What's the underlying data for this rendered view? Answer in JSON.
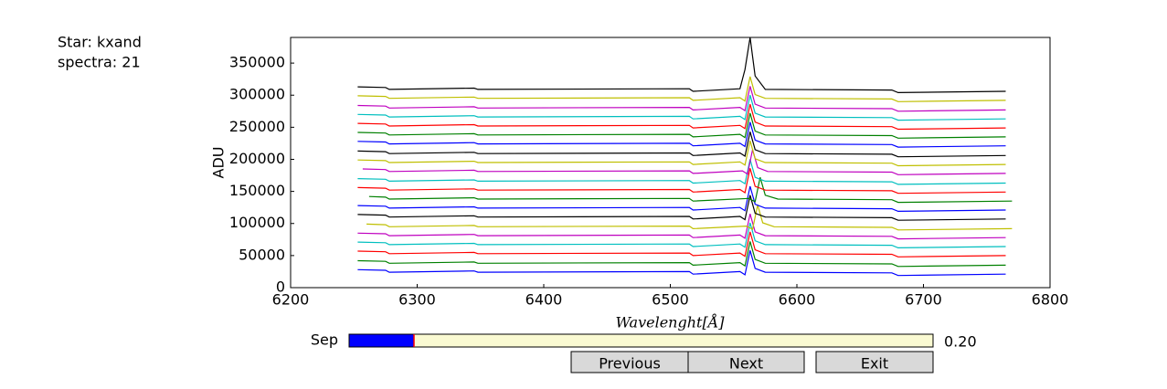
{
  "header": {
    "star": "Star: kxand",
    "spectra": "spectra: 21"
  },
  "chart_data": {
    "type": "line",
    "xlabel": "Wavelenght[Å]",
    "ylabel": "ADU",
    "xlim": [
      6200,
      6800
    ],
    "xticks": [
      6200,
      6300,
      6400,
      6500,
      6600,
      6700,
      6800
    ],
    "ylim": [
      0,
      390000
    ],
    "yticks": [
      0,
      50000,
      100000,
      150000,
      200000,
      250000,
      300000,
      350000
    ],
    "series": [
      {
        "color": "#0000ff",
        "x": [
          6253,
          6275,
          6278,
          6345,
          6348,
          6515,
          6518,
          6555,
          6559,
          6563,
          6567,
          6575,
          6675,
          6680,
          6765
        ],
        "values": [
          28000,
          27000,
          24000,
          26000,
          24000,
          25000,
          21000,
          25000,
          20000,
          58000,
          30000,
          24000,
          23000,
          19000,
          21000
        ]
      },
      {
        "color": "#008000",
        "x": [
          6253,
          6275,
          6278,
          6345,
          6348,
          6515,
          6518,
          6555,
          6559,
          6563,
          6567,
          6575,
          6675,
          6680,
          6765
        ],
        "values": [
          42000,
          41000,
          38000,
          40000,
          38000,
          39000,
          35000,
          39000,
          34000,
          72000,
          44000,
          38000,
          37000,
          33000,
          35000
        ]
      },
      {
        "color": "#ff0000",
        "x": [
          6253,
          6275,
          6278,
          6345,
          6348,
          6515,
          6518,
          6555,
          6559,
          6563,
          6567,
          6575,
          6675,
          6680,
          6765
        ],
        "values": [
          57000,
          56000,
          53000,
          55000,
          53000,
          54000,
          50000,
          54000,
          49000,
          87000,
          59000,
          53000,
          52000,
          48000,
          50000
        ]
      },
      {
        "color": "#00bfbf",
        "x": [
          6253,
          6275,
          6278,
          6345,
          6348,
          6515,
          6518,
          6555,
          6559,
          6563,
          6567,
          6575,
          6675,
          6680,
          6765
        ],
        "values": [
          71000,
          70000,
          67000,
          69000,
          67000,
          68000,
          64000,
          68000,
          63000,
          101000,
          73000,
          67000,
          66000,
          62000,
          64000
        ]
      },
      {
        "color": "#bf00bf",
        "x": [
          6253,
          6275,
          6278,
          6345,
          6348,
          6515,
          6518,
          6555,
          6559,
          6563,
          6567,
          6575,
          6675,
          6680,
          6765
        ],
        "values": [
          85000,
          84000,
          81000,
          83000,
          81000,
          82000,
          78000,
          82000,
          77000,
          115000,
          87000,
          81000,
          80000,
          76000,
          78000
        ]
      },
      {
        "color": "#bfbf00",
        "x": [
          6260,
          6275,
          6278,
          6345,
          6348,
          6515,
          6518,
          6560,
          6565,
          6569,
          6573,
          6582,
          6675,
          6680,
          6770
        ],
        "values": [
          99000,
          98000,
          95000,
          97000,
          95000,
          96000,
          92000,
          96000,
          91000,
          129000,
          101000,
          95000,
          94000,
          90000,
          92000
        ]
      },
      {
        "color": "#000000",
        "x": [
          6253,
          6275,
          6278,
          6345,
          6348,
          6515,
          6518,
          6555,
          6559,
          6563,
          6567,
          6575,
          6675,
          6680,
          6765
        ],
        "values": [
          114000,
          113000,
          110000,
          112000,
          110000,
          111000,
          107000,
          111000,
          106000,
          144000,
          116000,
          110000,
          109000,
          105000,
          107000
        ]
      },
      {
        "color": "#0000ff",
        "x": [
          6253,
          6275,
          6278,
          6345,
          6348,
          6515,
          6518,
          6555,
          6559,
          6563,
          6567,
          6575,
          6675,
          6680,
          6765
        ],
        "values": [
          128000,
          127000,
          124000,
          126000,
          124000,
          125000,
          121000,
          125000,
          120000,
          158000,
          130000,
          124000,
          123000,
          119000,
          121000
        ]
      },
      {
        "color": "#008000",
        "x": [
          6262,
          6275,
          6278,
          6345,
          6348,
          6515,
          6518,
          6562,
          6567,
          6571,
          6575,
          6585,
          6675,
          6680,
          6770
        ],
        "values": [
          142000,
          141000,
          138000,
          140000,
          138000,
          139000,
          135000,
          139000,
          134000,
          172000,
          144000,
          138000,
          137000,
          133000,
          135000
        ]
      },
      {
        "color": "#ff0000",
        "x": [
          6253,
          6275,
          6278,
          6345,
          6348,
          6515,
          6518,
          6555,
          6559,
          6563,
          6567,
          6575,
          6675,
          6680,
          6765
        ],
        "values": [
          156000,
          155000,
          152000,
          154000,
          152000,
          153000,
          149000,
          153000,
          148000,
          186000,
          158000,
          152000,
          151000,
          147000,
          149000
        ]
      },
      {
        "color": "#00bfbf",
        "x": [
          6253,
          6275,
          6278,
          6345,
          6348,
          6515,
          6518,
          6555,
          6559,
          6563,
          6567,
          6575,
          6675,
          6680,
          6765
        ],
        "values": [
          170000,
          169000,
          166000,
          168000,
          166000,
          167000,
          163000,
          167000,
          162000,
          200000,
          172000,
          166000,
          165000,
          161000,
          163000
        ]
      },
      {
        "color": "#bf00bf",
        "x": [
          6257,
          6275,
          6278,
          6345,
          6348,
          6515,
          6518,
          6557,
          6561,
          6565,
          6569,
          6577,
          6675,
          6680,
          6765
        ],
        "values": [
          185000,
          184000,
          181000,
          183000,
          181000,
          182000,
          178000,
          182000,
          177000,
          215000,
          187000,
          181000,
          180000,
          176000,
          178000
        ]
      },
      {
        "color": "#bfbf00",
        "x": [
          6253,
          6275,
          6278,
          6345,
          6348,
          6515,
          6518,
          6555,
          6559,
          6563,
          6567,
          6575,
          6675,
          6680,
          6765
        ],
        "values": [
          199000,
          198000,
          195000,
          197000,
          195000,
          196000,
          192000,
          196000,
          191000,
          229000,
          201000,
          195000,
          194000,
          190000,
          192000
        ]
      },
      {
        "color": "#000000",
        "x": [
          6253,
          6275,
          6278,
          6345,
          6348,
          6515,
          6518,
          6555,
          6559,
          6563,
          6567,
          6575,
          6675,
          6680,
          6765
        ],
        "values": [
          213000,
          212000,
          209000,
          211000,
          209000,
          210000,
          206000,
          210000,
          205000,
          243000,
          215000,
          209000,
          208000,
          204000,
          206000
        ]
      },
      {
        "color": "#0000ff",
        "x": [
          6253,
          6275,
          6278,
          6345,
          6348,
          6515,
          6518,
          6555,
          6559,
          6563,
          6567,
          6575,
          6675,
          6680,
          6765
        ],
        "values": [
          228000,
          227000,
          224000,
          226000,
          224000,
          225000,
          221000,
          225000,
          220000,
          258000,
          230000,
          224000,
          223000,
          219000,
          221000
        ]
      },
      {
        "color": "#008000",
        "x": [
          6253,
          6275,
          6278,
          6345,
          6348,
          6515,
          6518,
          6555,
          6559,
          6563,
          6567,
          6575,
          6675,
          6680,
          6765
        ],
        "values": [
          242000,
          241000,
          238000,
          240000,
          238000,
          239000,
          235000,
          239000,
          234000,
          272000,
          244000,
          238000,
          237000,
          233000,
          235000
        ]
      },
      {
        "color": "#ff0000",
        "x": [
          6253,
          6275,
          6278,
          6345,
          6348,
          6515,
          6518,
          6555,
          6559,
          6563,
          6567,
          6575,
          6675,
          6680,
          6765
        ],
        "values": [
          256000,
          255000,
          252000,
          254000,
          252000,
          253000,
          249000,
          253000,
          248000,
          286000,
          258000,
          252000,
          251000,
          247000,
          249000
        ]
      },
      {
        "color": "#00bfbf",
        "x": [
          6253,
          6275,
          6278,
          6345,
          6348,
          6515,
          6518,
          6555,
          6559,
          6563,
          6567,
          6575,
          6675,
          6680,
          6765
        ],
        "values": [
          270000,
          269000,
          266000,
          268000,
          266000,
          267000,
          263000,
          267000,
          262000,
          300000,
          272000,
          266000,
          265000,
          261000,
          263000
        ]
      },
      {
        "color": "#bf00bf",
        "x": [
          6253,
          6275,
          6278,
          6345,
          6348,
          6515,
          6518,
          6555,
          6559,
          6563,
          6567,
          6575,
          6675,
          6680,
          6765
        ],
        "values": [
          284000,
          283000,
          280000,
          282000,
          280000,
          281000,
          277000,
          281000,
          276000,
          314000,
          286000,
          280000,
          279000,
          275000,
          277000
        ]
      },
      {
        "color": "#bfbf00",
        "x": [
          6253,
          6275,
          6278,
          6345,
          6348,
          6515,
          6518,
          6555,
          6559,
          6563,
          6567,
          6575,
          6675,
          6680,
          6765
        ],
        "values": [
          299000,
          298000,
          295000,
          297000,
          295000,
          296000,
          292000,
          296000,
          291000,
          329000,
          301000,
          295000,
          294000,
          290000,
          292000
        ]
      },
      {
        "color": "#000000",
        "x": [
          6253,
          6275,
          6278,
          6345,
          6348,
          6515,
          6518,
          6555,
          6559,
          6563,
          6567,
          6575,
          6675,
          6680,
          6765
        ],
        "values": [
          313000,
          312000,
          309000,
          311000,
          309000,
          310000,
          306000,
          310000,
          340000,
          390000,
          330000,
          309000,
          308000,
          304000,
          306000
        ]
      }
    ]
  },
  "controls": {
    "slider": {
      "label": "Sep",
      "value": 0.2,
      "value_label": "0.20",
      "min": 0,
      "max": 1.8,
      "color": "#0000ff"
    },
    "buttons": [
      "Previous",
      "Next",
      "Exit"
    ]
  }
}
